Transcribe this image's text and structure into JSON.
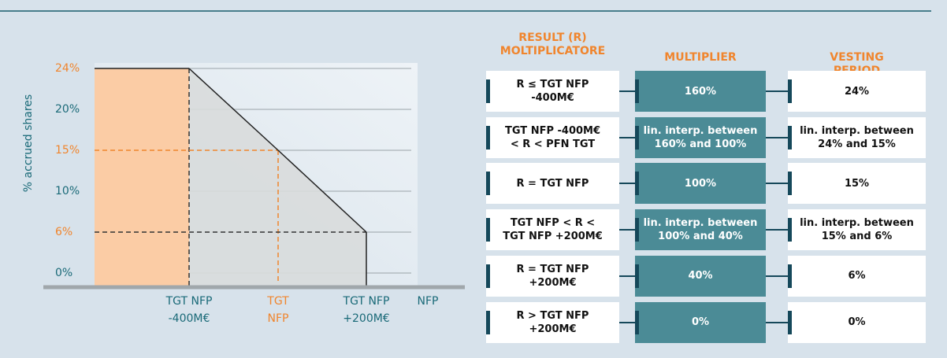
{
  "chart_data": {
    "type": "line",
    "ylabel": "% accrued shares",
    "xlabel": "NFP",
    "categories": [
      "TGT NFP\n-400M€",
      "TGT\nNFP",
      "TGT NFP\n+200M€"
    ],
    "series": [
      {
        "name": "accrued shares",
        "color": "#222222",
        "values": [
          24,
          15,
          6
        ]
      }
    ],
    "yticks": [
      {
        "value": 0,
        "label": "0%"
      },
      {
        "value": 6,
        "label": "6%"
      },
      {
        "value": 10,
        "label": "10%"
      },
      {
        "value": 15,
        "label": "15%"
      },
      {
        "value": 20,
        "label": "20%"
      },
      {
        "value": 24,
        "label": "24%"
      }
    ],
    "ylim": [
      0,
      24
    ],
    "grid": true,
    "highlight_color": "#f0852d",
    "fill_color": "#fbcca5",
    "area_color": "#d8dbdc"
  },
  "table": {
    "headers": [
      "RESULT (R)\nMOLTIPLICATORE",
      "MULTIPLIER",
      "VESTING PERIOD"
    ],
    "rows": [
      [
        "R ≤ TGT NFP\n-400M€",
        "160%",
        "24%"
      ],
      [
        "TGT NFP  -400M€\n< R < PFN TGT",
        "lin. interp. between\n160% and  100%",
        "lin. interp. between\n24% and 15%"
      ],
      [
        "R = TGT NFP",
        "100%",
        "15%"
      ],
      [
        "TGT NFP  < R <\nTGT NFP  +200M€",
        "lin. interp. between\n100% and 40%",
        "lin. interp. between\n15% and  6%"
      ],
      [
        "R = TGT NFP\n+200M€",
        "40%",
        "6%"
      ],
      [
        "R > TGT NFP\n+200M€",
        "0%",
        "0%"
      ]
    ]
  }
}
